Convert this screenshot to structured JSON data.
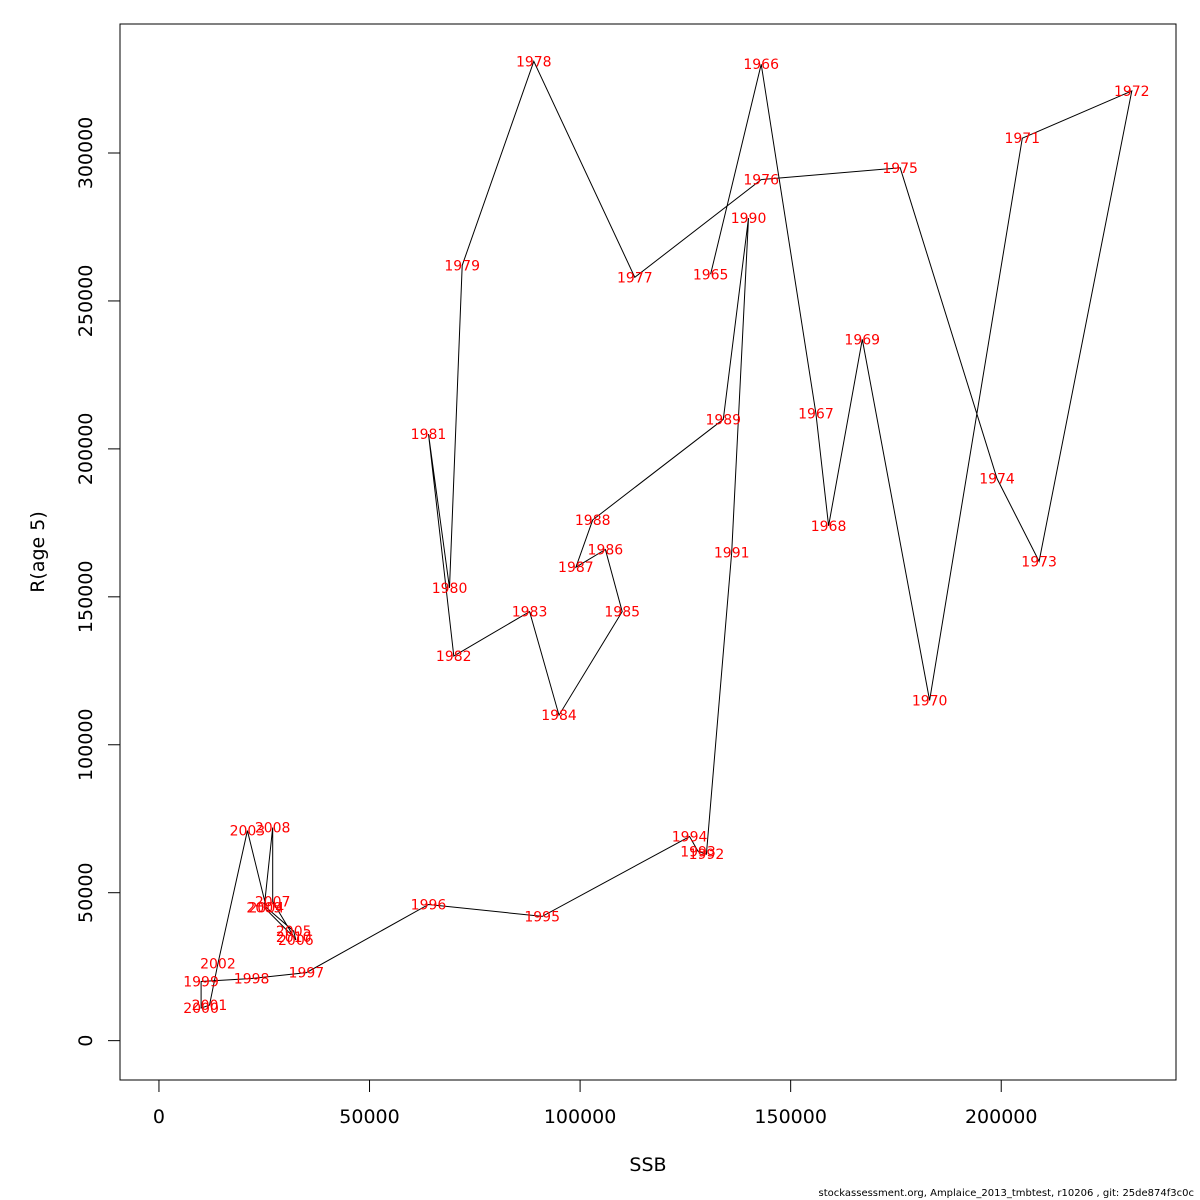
{
  "chart_data": {
    "type": "line",
    "xlabel": "SSB",
    "ylabel": "R(age 5)",
    "xlim": [
      -9250,
      241500
    ],
    "ylim": [
      -13300,
      343600
    ],
    "x_ticks": [
      0,
      50000,
      100000,
      150000,
      200000
    ],
    "x_tick_labels": [
      "0",
      "50000",
      "100000",
      "150000",
      "200000"
    ],
    "y_ticks": [
      0,
      50000,
      100000,
      150000,
      200000,
      250000,
      300000
    ],
    "y_tick_labels": [
      "0",
      "50000",
      "100000",
      "150000",
      "200000",
      "250000",
      "300000"
    ],
    "label_color": "#ff0000",
    "line_color": "#000000",
    "grid": false,
    "points": [
      {
        "year": "1965",
        "ssb": 131000,
        "r": 259000
      },
      {
        "year": "1966",
        "ssb": 143000,
        "r": 330000
      },
      {
        "year": "1967",
        "ssb": 156000,
        "r": 212000
      },
      {
        "year": "1968",
        "ssb": 159000,
        "r": 174000
      },
      {
        "year": "1969",
        "ssb": 167000,
        "r": 237000
      },
      {
        "year": "1970",
        "ssb": 183000,
        "r": 115000
      },
      {
        "year": "1971",
        "ssb": 205000,
        "r": 305000
      },
      {
        "year": "1972",
        "ssb": 231000,
        "r": 321000
      },
      {
        "year": "1973",
        "ssb": 209000,
        "r": 162000
      },
      {
        "year": "1974",
        "ssb": 199000,
        "r": 190000
      },
      {
        "year": "1975",
        "ssb": 176000,
        "r": 295000
      },
      {
        "year": "1976",
        "ssb": 143000,
        "r": 291000
      },
      {
        "year": "1977",
        "ssb": 113000,
        "r": 258000
      },
      {
        "year": "1978",
        "ssb": 89000,
        "r": 331000
      },
      {
        "year": "1979",
        "ssb": 72000,
        "r": 262000
      },
      {
        "year": "1980",
        "ssb": 69000,
        "r": 153000
      },
      {
        "year": "1981",
        "ssb": 64000,
        "r": 205000
      },
      {
        "year": "1982",
        "ssb": 70000,
        "r": 130000
      },
      {
        "year": "1983",
        "ssb": 88000,
        "r": 145000
      },
      {
        "year": "1984",
        "ssb": 95000,
        "r": 110000
      },
      {
        "year": "1985",
        "ssb": 110000,
        "r": 145000
      },
      {
        "year": "1986",
        "ssb": 106000,
        "r": 166000
      },
      {
        "year": "1987",
        "ssb": 99000,
        "r": 160000
      },
      {
        "year": "1988",
        "ssb": 103000,
        "r": 176000
      },
      {
        "year": "1989",
        "ssb": 134000,
        "r": 210000
      },
      {
        "year": "1990",
        "ssb": 140000,
        "r": 278000
      },
      {
        "year": "1991",
        "ssb": 136000,
        "r": 165000
      },
      {
        "year": "1992",
        "ssb": 130000,
        "r": 63000
      },
      {
        "year": "1993",
        "ssb": 128000,
        "r": 64000
      },
      {
        "year": "1994",
        "ssb": 126000,
        "r": 69000
      },
      {
        "year": "1995",
        "ssb": 91000,
        "r": 42000
      },
      {
        "year": "1996",
        "ssb": 64000,
        "r": 46000
      },
      {
        "year": "1997",
        "ssb": 35000,
        "r": 23000
      },
      {
        "year": "1998",
        "ssb": 22000,
        "r": 21000
      },
      {
        "year": "1999",
        "ssb": 10000,
        "r": 20000
      },
      {
        "year": "2000",
        "ssb": 10000,
        "r": 11000
      },
      {
        "year": "2001",
        "ssb": 12000,
        "r": 12000
      },
      {
        "year": "2002",
        "ssb": 14000,
        "r": 26000
      },
      {
        "year": "2003",
        "ssb": 21000,
        "r": 71000
      },
      {
        "year": "2004",
        "ssb": 25500,
        "r": 45000
      },
      {
        "year": "2005",
        "ssb": 32000,
        "r": 37000
      },
      {
        "year": "2006",
        "ssb": 32500,
        "r": 34000
      },
      {
        "year": "2007",
        "ssb": 27000,
        "r": 47000
      },
      {
        "year": "2008",
        "ssb": 27000,
        "r": 72000
      },
      {
        "year": "2009",
        "ssb": 25000,
        "r": 45000
      },
      {
        "year": "2010",
        "ssb": 32000,
        "r": 35000
      }
    ]
  },
  "footer": "stockassessment.org, Amplaice_2013_tmbtest, r10206 , git: 25de874f3c0c"
}
